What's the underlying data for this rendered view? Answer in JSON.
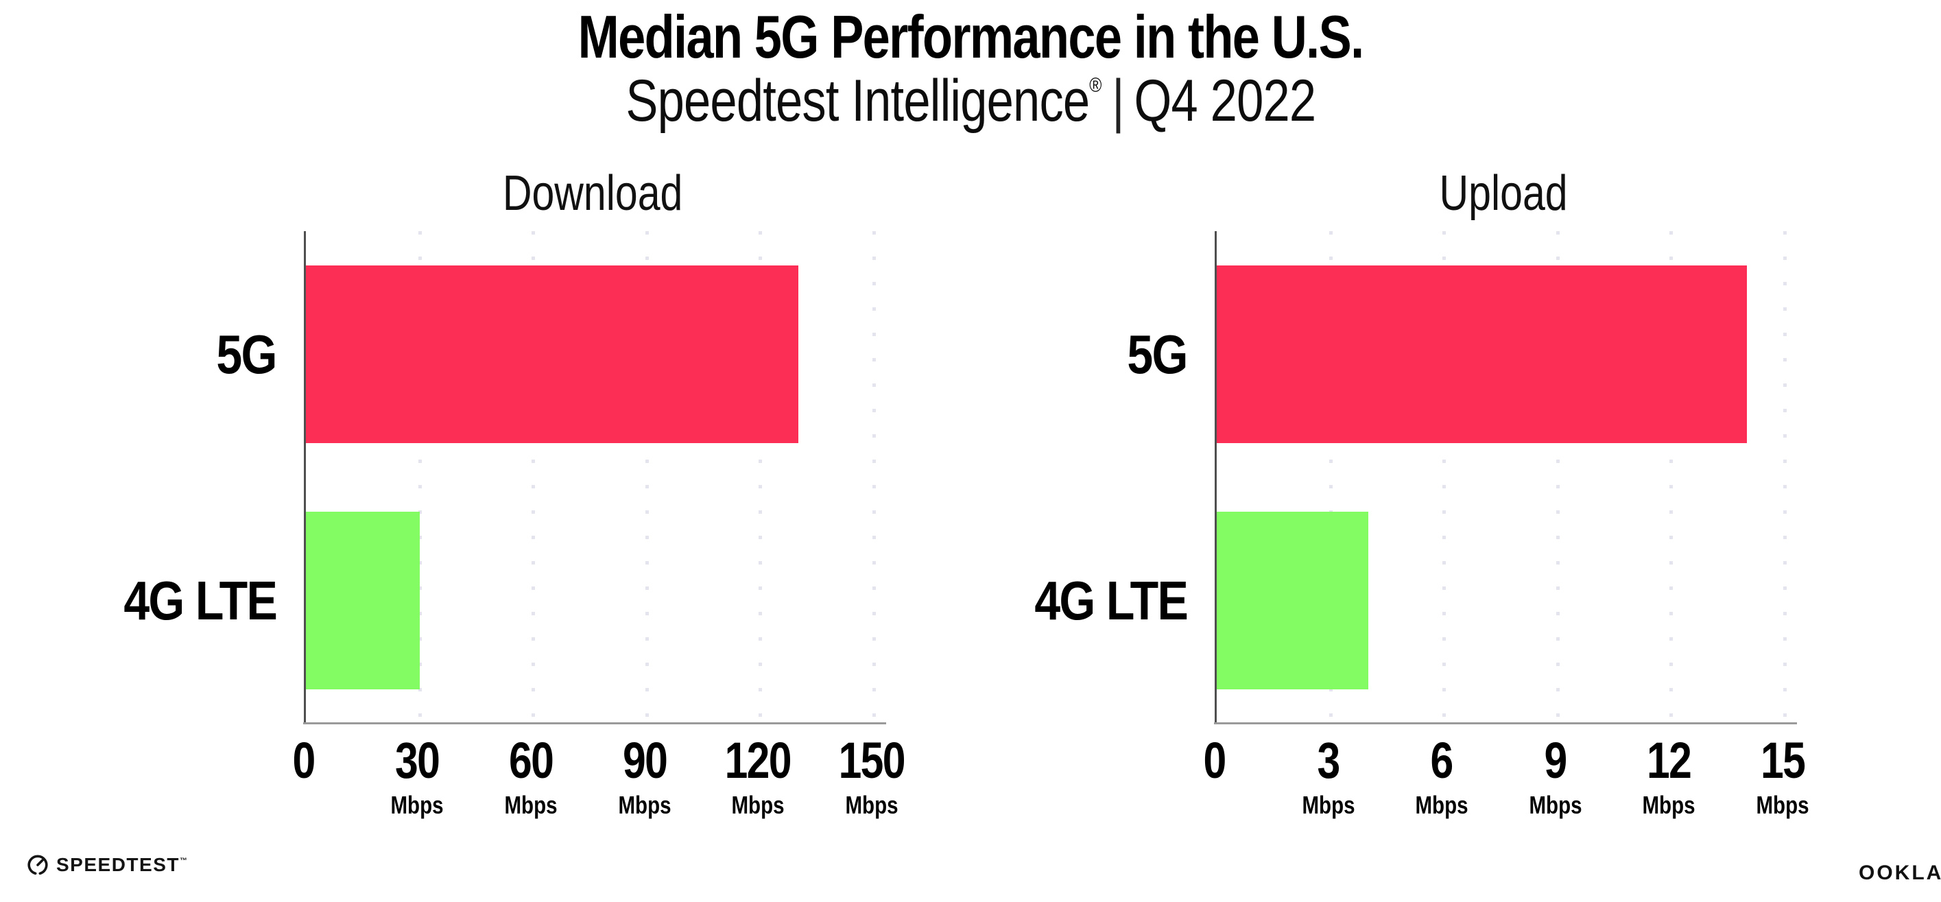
{
  "header": {
    "title": "Median 5G Performance in the U.S.",
    "subtitle_brand": "Speedtest Intelligence",
    "subtitle_reg": "®",
    "subtitle_separator": "|",
    "subtitle_period": "Q4 2022"
  },
  "chart_data": [
    {
      "type": "bar",
      "orientation": "horizontal",
      "panel_title": "Download",
      "categories": [
        "5G",
        "4G LTE"
      ],
      "values": [
        130,
        30
      ],
      "unit": "Mbps",
      "colors": [
        "#FD2E56",
        "#83FB63"
      ],
      "xlim": [
        0,
        150
      ],
      "xticks": [
        0,
        30,
        60,
        90,
        120,
        150
      ],
      "xtick_unit": "Mbps",
      "grid": "dotted vertical gridlines every 30 Mbps",
      "legend": "none"
    },
    {
      "type": "bar",
      "orientation": "horizontal",
      "panel_title": "Upload",
      "categories": [
        "5G",
        "4G LTE"
      ],
      "values": [
        14,
        4
      ],
      "unit": "Mbps",
      "colors": [
        "#FD2E56",
        "#83FB63"
      ],
      "xlim": [
        0,
        15
      ],
      "xticks": [
        0,
        3,
        6,
        9,
        12,
        15
      ],
      "xtick_unit": "Mbps",
      "grid": "dotted vertical gridlines every 3 Mbps",
      "legend": "none"
    }
  ],
  "colors": {
    "bar_5g": "#FD2E56",
    "bar_4g_lte": "#83FB63",
    "gridline": "#E4E4EE",
    "y_axis": "#4F4F4F",
    "x_axis": "#9A9A9A",
    "background": "#FFFFFF"
  },
  "footer": {
    "speedtest_label": "SPEEDTEST",
    "speedtest_tm": "™",
    "ookla_label": "OOKLA",
    "ookla_reg": "®"
  }
}
